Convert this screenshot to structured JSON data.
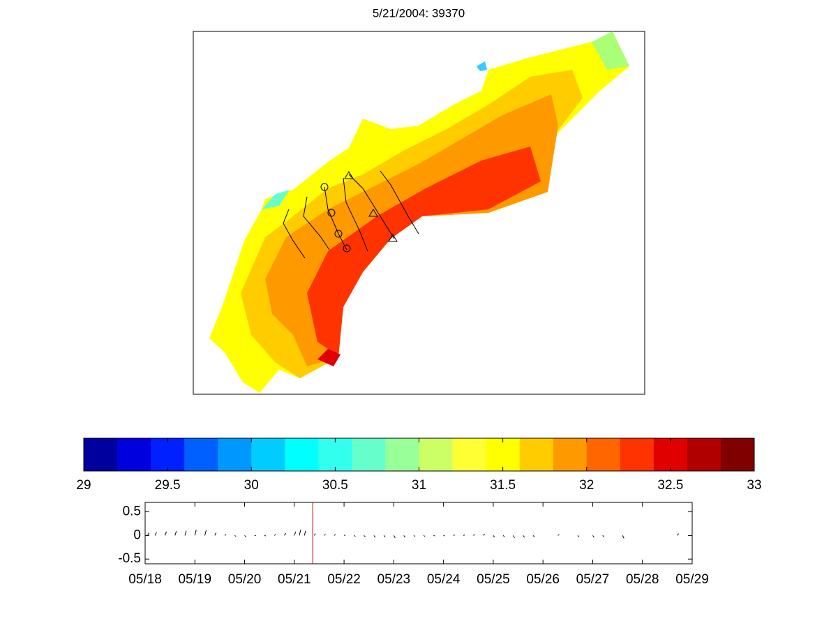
{
  "chart_data": [
    {
      "type": "map",
      "title": "5/21/2004: 39370"
    },
    {
      "type": "colorbar",
      "xlim": [
        29,
        33
      ],
      "xticks": [
        29,
        29.5,
        30,
        30.5,
        31,
        31.5,
        32,
        32.5,
        33
      ],
      "colors": [
        "#00009f",
        "#0000df",
        "#0020ff",
        "#0060ff",
        "#0098ff",
        "#00ccff",
        "#00ffff",
        "#33ffee",
        "#66ffcc",
        "#99ff99",
        "#ccff66",
        "#ffff33",
        "#ffff00",
        "#ffcc00",
        "#ff9900",
        "#ff6600",
        "#ff3300",
        "#e00000",
        "#b00000",
        "#800000"
      ]
    },
    {
      "type": "stick",
      "ylim": [
        -0.6,
        0.7
      ],
      "yticks": [
        -0.5,
        0,
        0.5
      ],
      "xlim": [
        0,
        11
      ],
      "xticks": [
        {
          "value": 0,
          "label": "05/18"
        },
        {
          "value": 1,
          "label": "05/19"
        },
        {
          "value": 2,
          "label": "05/20"
        },
        {
          "value": 3,
          "label": "05/21"
        },
        {
          "value": 4,
          "label": "05/22"
        },
        {
          "value": 5,
          "label": "05/23"
        },
        {
          "value": 6,
          "label": "05/24"
        },
        {
          "value": 7,
          "label": "05/25"
        },
        {
          "value": 8,
          "label": "05/26"
        },
        {
          "value": 9,
          "label": "05/27"
        },
        {
          "value": 10,
          "label": "05/28"
        },
        {
          "value": 11,
          "label": "05/29"
        }
      ],
      "current_time": 3.37,
      "color": "#000000",
      "marker_color": "#cc0000",
      "x": [
        0.05,
        0.2,
        0.4,
        0.6,
        0.8,
        1.0,
        1.2,
        1.4,
        1.6,
        1.8,
        2.0,
        2.2,
        2.4,
        2.6,
        2.8,
        3.0,
        3.1,
        3.2,
        3.4,
        3.6,
        3.8,
        4.0,
        4.2,
        4.4,
        4.6,
        4.8,
        5.0,
        5.2,
        5.4,
        5.6,
        5.8,
        6.0,
        6.2,
        6.4,
        6.6,
        6.8,
        7.0,
        7.2,
        7.4,
        7.6,
        7.8,
        8.3,
        8.7,
        9.0,
        9.2,
        9.6,
        10.7
      ],
      "values": [
        0.06,
        0.07,
        0.08,
        0.09,
        0.1,
        0.12,
        0.11,
        0.06,
        0.02,
        -0.02,
        -0.03,
        0.0,
        -0.01,
        0.02,
        0.05,
        0.08,
        0.12,
        0.1,
        0.04,
        0.02,
        0.02,
        0.01,
        -0.02,
        -0.03,
        -0.04,
        -0.03,
        -0.05,
        -0.04,
        -0.02,
        -0.02,
        -0.01,
        -0.01,
        0.01,
        0.01,
        0.02,
        0.03,
        -0.04,
        -0.03,
        -0.05,
        -0.04,
        -0.03,
        0.02,
        -0.03,
        -0.04,
        -0.03,
        -0.06,
        0.04
      ]
    }
  ]
}
